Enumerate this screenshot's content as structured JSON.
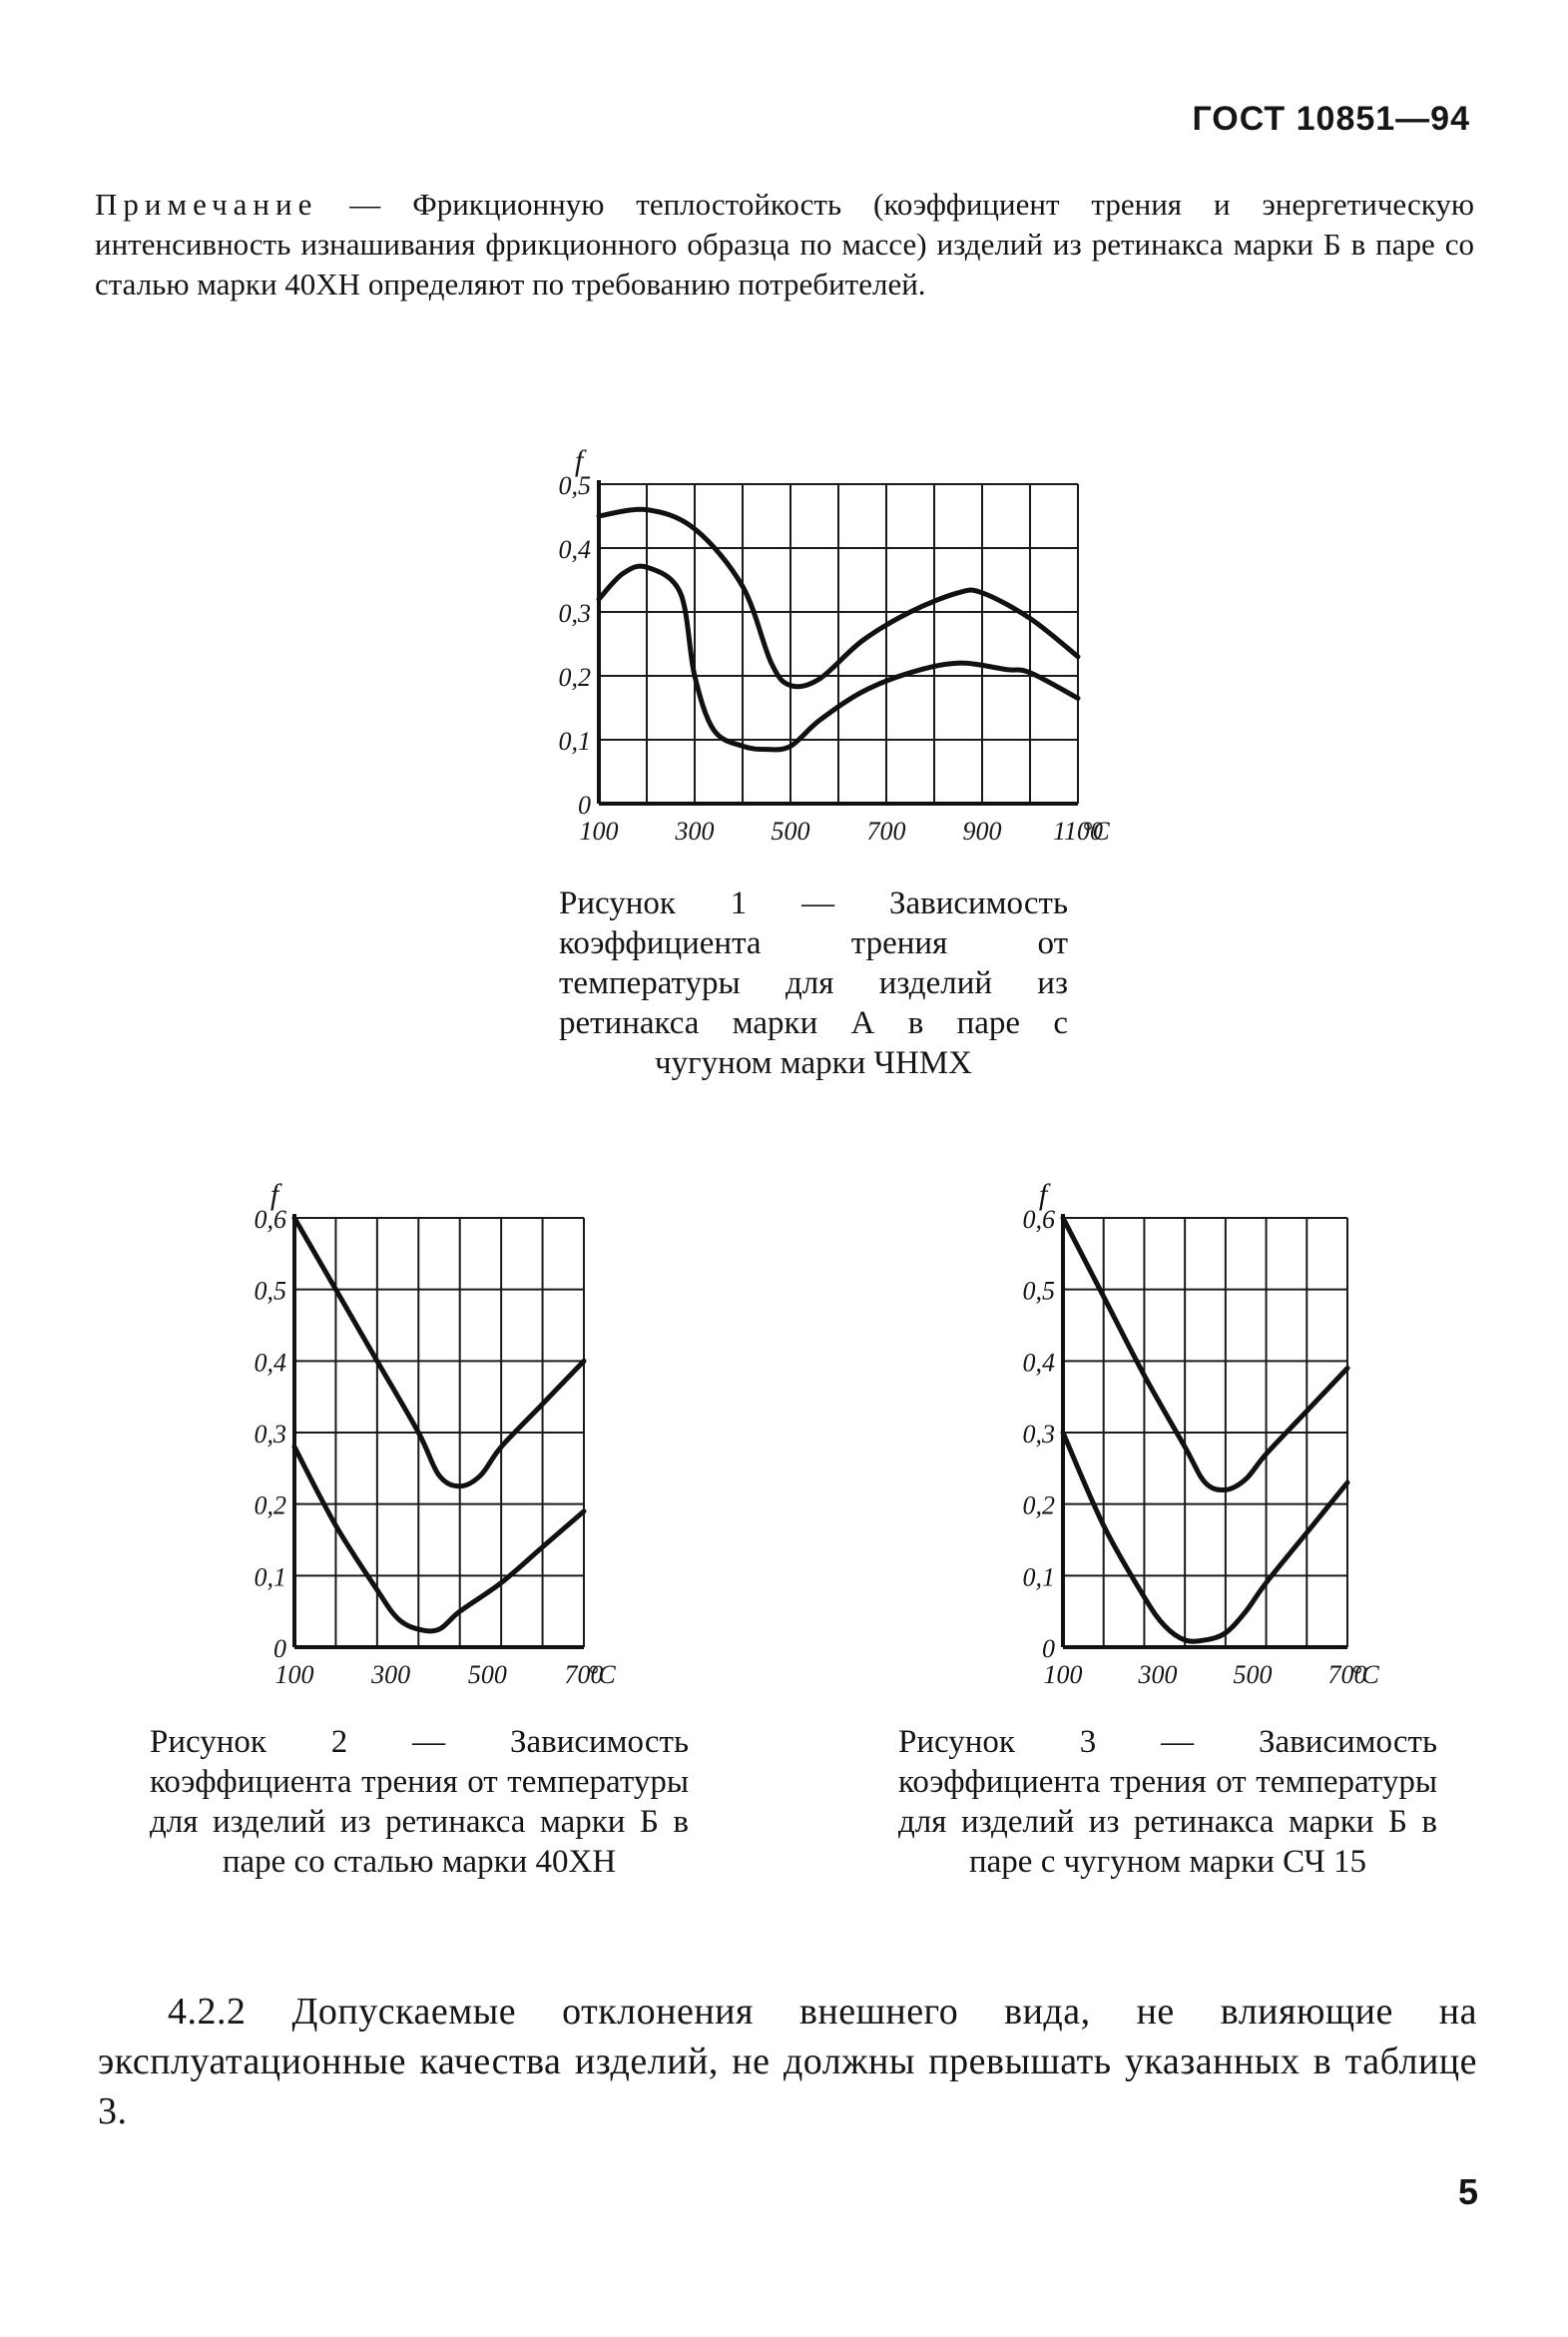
{
  "header": {
    "standard": "ГОСТ 10851—94"
  },
  "note": {
    "lead": "Примечание",
    "text": " — Фрикционную теплостойкость (коэффициент трения и энергетическую интенсивность изнашивания фрикционного образца по массе) изделий из ретинакса марки Б в паре со сталью марки 40ХН определяют по требованию потребителей."
  },
  "figures": [
    {
      "caption": "Рисунок 1 — Зависимость коэффициента трения от температуры для изделий из ретинакса марки А в паре с чугуном марки ЧНМХ"
    },
    {
      "caption": "Рисунок 2 — Зависимость коэффициента трения от температуры для изделий из ретинакса марки Б в паре со сталью марки 40ХН"
    },
    {
      "caption": "Рисунок 3 — Зависимость коэффициента трения от температуры для изделий из ретинакса марки Б в паре с чугуном марки СЧ 15"
    }
  ],
  "chart_data": [
    {
      "type": "line",
      "ylabel": "f",
      "xunit": "°С",
      "xlim": [
        100,
        1100
      ],
      "ylim": [
        0,
        0.5
      ],
      "xticks": [
        "100",
        "300",
        "500",
        "700",
        "900",
        "1100"
      ],
      "yticks": [
        "0",
        "0,1",
        "0,2",
        "0,3",
        "0,4",
        "0,5"
      ],
      "grid": true,
      "series": [
        {
          "x": [
            100,
            200,
            300,
            400,
            460,
            500,
            560,
            650,
            750,
            850,
            900,
            1000,
            1100
          ],
          "y": [
            0.45,
            0.46,
            0.43,
            0.34,
            0.22,
            0.185,
            0.195,
            0.255,
            0.3,
            0.33,
            0.33,
            0.29,
            0.23
          ]
        },
        {
          "x": [
            100,
            150,
            200,
            270,
            300,
            340,
            400,
            450,
            500,
            560,
            650,
            750,
            850,
            950,
            1000,
            1100
          ],
          "y": [
            0.32,
            0.36,
            0.37,
            0.33,
            0.2,
            0.115,
            0.09,
            0.085,
            0.09,
            0.13,
            0.175,
            0.205,
            0.22,
            0.21,
            0.205,
            0.165
          ]
        }
      ]
    },
    {
      "type": "line",
      "ylabel": "f",
      "xunit": "°С",
      "xlim": [
        100,
        800
      ],
      "ylim": [
        0,
        0.6
      ],
      "xticks": [
        "100",
        "300",
        "500",
        "700"
      ],
      "yticks": [
        "0",
        "0,1",
        "0,2",
        "0,3",
        "0,4",
        "0,5",
        "0,6"
      ],
      "grid": true,
      "series": [
        {
          "x": [
            100,
            200,
            300,
            400,
            450,
            500,
            550,
            600,
            700,
            800
          ],
          "y": [
            0.6,
            0.5,
            0.4,
            0.3,
            0.24,
            0.225,
            0.24,
            0.28,
            0.34,
            0.4
          ]
        },
        {
          "x": [
            100,
            200,
            300,
            350,
            400,
            450,
            500,
            600,
            700,
            800
          ],
          "y": [
            0.28,
            0.17,
            0.08,
            0.04,
            0.025,
            0.025,
            0.05,
            0.09,
            0.14,
            0.19
          ]
        }
      ]
    },
    {
      "type": "line",
      "ylabel": "f",
      "xunit": "°С",
      "xlim": [
        100,
        800
      ],
      "ylim": [
        0,
        0.6
      ],
      "xticks": [
        "100",
        "300",
        "500",
        "700"
      ],
      "yticks": [
        "0",
        "0,1",
        "0,2",
        "0,3",
        "0,4",
        "0,5",
        "0,6"
      ],
      "grid": true,
      "series": [
        {
          "x": [
            100,
            200,
            300,
            400,
            450,
            500,
            550,
            600,
            700,
            800
          ],
          "y": [
            0.6,
            0.49,
            0.38,
            0.28,
            0.23,
            0.22,
            0.235,
            0.27,
            0.33,
            0.39
          ]
        },
        {
          "x": [
            100,
            200,
            300,
            350,
            400,
            450,
            500,
            550,
            600,
            700,
            800
          ],
          "y": [
            0.3,
            0.17,
            0.07,
            0.03,
            0.01,
            0.01,
            0.02,
            0.05,
            0.09,
            0.16,
            0.23
          ]
        }
      ]
    }
  ],
  "clause": {
    "text": "4.2.2 Допускаемые отклонения внешнего вида, не влияющие на эксплуатационные качества изделий, не должны превышать указанных в таблице 3."
  },
  "page_number": "5"
}
